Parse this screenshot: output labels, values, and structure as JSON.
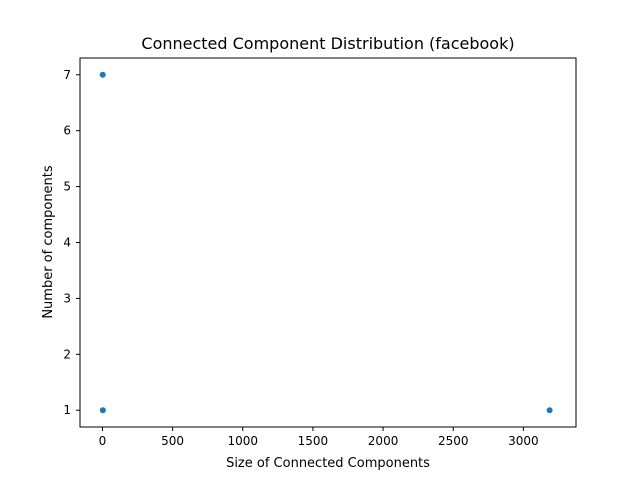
{
  "chart_data": {
    "type": "scatter",
    "title": "Connected Component Distribution (facebook)",
    "xlabel": "Size of Connected Components",
    "ylabel": "Number of components",
    "xlim": [
      -160,
      3375
    ],
    "ylim": [
      0.7,
      7.3
    ],
    "xticks": [
      0,
      500,
      1000,
      1500,
      2000,
      2500,
      3000
    ],
    "yticks": [
      1,
      2,
      3,
      4,
      5,
      6,
      7
    ],
    "grid": false,
    "legend": "none",
    "series": [
      {
        "x": [
          2,
          3,
          3187
        ],
        "y": [
          7,
          1,
          1
        ],
        "color": "#1f77b4"
      }
    ]
  }
}
